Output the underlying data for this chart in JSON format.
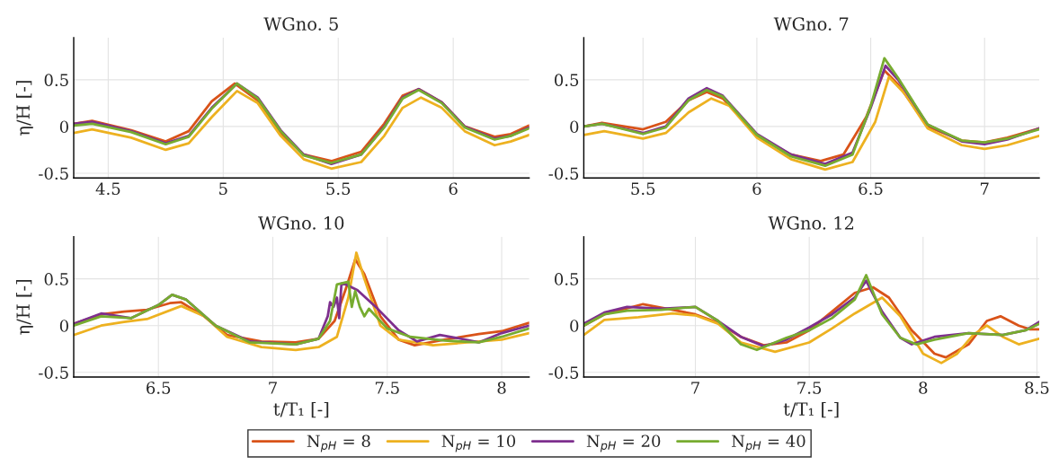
{
  "chart_data": [
    {
      "type": "line",
      "title": "WGno. 5",
      "ylabel": "η/H [-]",
      "xlim": [
        4.35,
        6.33
      ],
      "ylim": [
        -0.55,
        0.95
      ],
      "xticks": [
        4.5,
        5,
        5.5,
        6
      ],
      "yticks": [
        -0.5,
        0,
        0.5
      ],
      "grid": true,
      "legend": "bottom",
      "series": [
        {
          "name": "N$_{pH}$ = 8",
          "color": "#d95319",
          "x": [
            4.35,
            4.43,
            4.6,
            4.75,
            4.85,
            4.95,
            5.05,
            5.15,
            5.25,
            5.35,
            5.47,
            5.6,
            5.7,
            5.78,
            5.85,
            5.95,
            6.05,
            6.18,
            6.25,
            6.33
          ],
          "values": [
            0.03,
            0.06,
            -0.04,
            -0.16,
            -0.05,
            0.27,
            0.46,
            0.28,
            -0.07,
            -0.3,
            -0.37,
            -0.27,
            0.03,
            0.33,
            0.4,
            0.26,
            0.0,
            -0.11,
            -0.08,
            0.01
          ]
        },
        {
          "name": "N$_{pH}$ = 10",
          "color": "#edb120",
          "x": [
            4.35,
            4.43,
            4.6,
            4.75,
            4.85,
            4.95,
            5.06,
            5.15,
            5.25,
            5.35,
            5.47,
            5.6,
            5.7,
            5.78,
            5.86,
            5.95,
            6.05,
            6.18,
            6.25,
            6.33
          ],
          "values": [
            -0.07,
            -0.03,
            -0.12,
            -0.25,
            -0.18,
            0.1,
            0.38,
            0.25,
            -0.1,
            -0.35,
            -0.45,
            -0.38,
            -0.1,
            0.2,
            0.31,
            0.2,
            -0.05,
            -0.2,
            -0.16,
            -0.09
          ]
        },
        {
          "name": "N$_{pH}$ = 20",
          "color": "#7e2f8e",
          "x": [
            4.35,
            4.43,
            4.6,
            4.75,
            4.85,
            4.95,
            5.06,
            5.15,
            5.25,
            5.35,
            5.47,
            5.6,
            5.7,
            5.78,
            5.85,
            5.95,
            6.05,
            6.18,
            6.25,
            6.33
          ],
          "values": [
            0.03,
            0.05,
            -0.05,
            -0.18,
            -0.1,
            0.2,
            0.46,
            0.31,
            -0.04,
            -0.3,
            -0.4,
            -0.3,
            0.0,
            0.31,
            0.4,
            0.26,
            0.0,
            -0.13,
            -0.1,
            -0.01
          ]
        },
        {
          "name": "N$_{pH}$ = 40",
          "color": "#77ac30",
          "x": [
            4.35,
            4.43,
            4.6,
            4.75,
            4.85,
            4.95,
            5.06,
            5.15,
            5.25,
            5.35,
            5.47,
            5.6,
            5.7,
            5.78,
            5.85,
            5.95,
            6.05,
            6.18,
            6.25,
            6.33
          ],
          "values": [
            0.01,
            0.03,
            -0.06,
            -0.19,
            -0.11,
            0.19,
            0.46,
            0.3,
            -0.05,
            -0.31,
            -0.39,
            -0.3,
            -0.01,
            0.3,
            0.39,
            0.25,
            -0.01,
            -0.14,
            -0.1,
            -0.02
          ]
        }
      ]
    },
    {
      "type": "line",
      "title": "WGno. 7",
      "xlim": [
        5.24,
        7.24
      ],
      "ylim": [
        -0.55,
        0.95
      ],
      "xticks": [
        5.5,
        6,
        6.5,
        7
      ],
      "yticks": [
        -0.5,
        0,
        0.5
      ],
      "grid": true,
      "legend": "bottom",
      "series": [
        {
          "name": "N$_{pH}$ = 8",
          "color": "#d95319",
          "x": [
            5.24,
            5.32,
            5.5,
            5.6,
            5.7,
            5.78,
            5.85,
            6.0,
            6.15,
            6.28,
            6.38,
            6.48,
            6.56,
            6.62,
            6.75,
            6.9,
            7.0,
            7.1,
            7.24
          ],
          "values": [
            0.0,
            0.04,
            -0.03,
            0.05,
            0.28,
            0.37,
            0.3,
            -0.1,
            -0.3,
            -0.37,
            -0.3,
            0.1,
            0.6,
            0.45,
            0.0,
            -0.15,
            -0.17,
            -0.12,
            -0.02
          ]
        },
        {
          "name": "N$_{pH}$ = 10",
          "color": "#edb120",
          "x": [
            5.24,
            5.33,
            5.5,
            5.6,
            5.7,
            5.8,
            5.88,
            6.0,
            6.15,
            6.3,
            6.42,
            6.52,
            6.58,
            6.65,
            6.75,
            6.9,
            7.0,
            7.1,
            7.24
          ],
          "values": [
            -0.09,
            -0.05,
            -0.13,
            -0.07,
            0.15,
            0.3,
            0.22,
            -0.12,
            -0.35,
            -0.46,
            -0.38,
            0.05,
            0.53,
            0.35,
            -0.02,
            -0.2,
            -0.24,
            -0.2,
            -0.1
          ]
        },
        {
          "name": "N$_{pH}$ = 20",
          "color": "#7e2f8e",
          "x": [
            5.24,
            5.32,
            5.5,
            5.6,
            5.7,
            5.78,
            5.85,
            6.0,
            6.15,
            6.3,
            6.42,
            6.5,
            6.565,
            6.62,
            6.75,
            6.9,
            7.0,
            7.1,
            7.24
          ],
          "values": [
            0.0,
            0.03,
            -0.07,
            0.0,
            0.3,
            0.41,
            0.33,
            -0.08,
            -0.3,
            -0.4,
            -0.28,
            0.2,
            0.65,
            0.5,
            0.02,
            -0.16,
            -0.19,
            -0.14,
            -0.02
          ]
        },
        {
          "name": "N$_{pH}$ = 40",
          "color": "#77ac30",
          "x": [
            5.24,
            5.32,
            5.5,
            5.6,
            5.7,
            5.78,
            5.85,
            6.0,
            6.15,
            6.3,
            6.42,
            6.5,
            6.56,
            6.62,
            6.75,
            6.9,
            7.0,
            7.1,
            7.24
          ],
          "values": [
            0.0,
            0.03,
            -0.08,
            -0.01,
            0.28,
            0.39,
            0.32,
            -0.09,
            -0.32,
            -0.42,
            -0.3,
            0.22,
            0.73,
            0.52,
            0.02,
            -0.15,
            -0.17,
            -0.13,
            -0.03
          ]
        }
      ]
    },
    {
      "type": "line",
      "title": "WGno. 10",
      "xlabel": "t/T₁ [-]",
      "ylabel": "η/H [-]",
      "xlim": [
        6.13,
        8.12
      ],
      "ylim": [
        -0.55,
        0.95
      ],
      "xticks": [
        6.5,
        7,
        7.5,
        8
      ],
      "yticks": [
        -0.5,
        0,
        0.5
      ],
      "grid": true,
      "legend": "bottom",
      "series": [
        {
          "name": "N$_{pH}$ = 8",
          "color": "#d95319",
          "x": [
            6.13,
            6.25,
            6.35,
            6.45,
            6.55,
            6.6,
            6.7,
            6.8,
            6.95,
            7.1,
            7.2,
            7.27,
            7.32,
            7.36,
            7.4,
            7.47,
            7.55,
            7.62,
            7.75,
            7.9,
            8.0,
            8.12
          ],
          "values": [
            0.02,
            0.12,
            0.15,
            0.17,
            0.24,
            0.25,
            0.1,
            -0.1,
            -0.17,
            -0.18,
            -0.14,
            0.05,
            0.4,
            0.71,
            0.55,
            0.1,
            -0.15,
            -0.21,
            -0.15,
            -0.09,
            -0.06,
            0.03
          ]
        },
        {
          "name": "N$_{pH}$ = 10",
          "color": "#edb120",
          "x": [
            6.13,
            6.25,
            6.35,
            6.45,
            6.6,
            6.7,
            6.8,
            6.95,
            7.1,
            7.2,
            7.28,
            7.33,
            7.365,
            7.4,
            7.47,
            7.55,
            7.7,
            7.85,
            8.0,
            8.12
          ],
          "values": [
            -0.1,
            0.0,
            0.04,
            0.07,
            0.21,
            0.1,
            -0.12,
            -0.23,
            -0.26,
            -0.23,
            -0.12,
            0.3,
            0.78,
            0.5,
            0.0,
            -0.15,
            -0.21,
            -0.18,
            -0.15,
            -0.08
          ]
        },
        {
          "name": "N$_{pH}$ = 20",
          "color": "#7e2f8e",
          "x": [
            6.13,
            6.25,
            6.38,
            6.5,
            6.56,
            6.62,
            6.75,
            6.9,
            7.1,
            7.2,
            7.24,
            7.25,
            7.265,
            7.28,
            7.29,
            7.3,
            7.32,
            7.37,
            7.45,
            7.55,
            7.63,
            7.73,
            7.8,
            7.9,
            8.0,
            8.12
          ],
          "values": [
            0.02,
            0.13,
            0.08,
            0.22,
            0.33,
            0.28,
            0.0,
            -0.17,
            -0.2,
            -0.14,
            0.1,
            0.25,
            0.2,
            0.3,
            0.08,
            0.45,
            0.44,
            0.38,
            0.2,
            -0.05,
            -0.17,
            -0.1,
            -0.13,
            -0.18,
            -0.08,
            0.0
          ]
        },
        {
          "name": "N$_{pH}$ = 40",
          "color": "#77ac30",
          "x": [
            6.13,
            6.25,
            6.38,
            6.5,
            6.56,
            6.62,
            6.75,
            6.9,
            7.1,
            7.2,
            7.25,
            7.28,
            7.33,
            7.345,
            7.36,
            7.38,
            7.4,
            7.42,
            7.5,
            7.6,
            7.75,
            7.9,
            8.0,
            8.12
          ],
          "values": [
            0.0,
            0.1,
            0.08,
            0.22,
            0.33,
            0.28,
            0.0,
            -0.18,
            -0.2,
            -0.14,
            0.05,
            0.44,
            0.47,
            0.2,
            0.37,
            0.2,
            0.1,
            0.18,
            -0.03,
            -0.12,
            -0.16,
            -0.18,
            -0.12,
            -0.03
          ]
        }
      ]
    },
    {
      "type": "line",
      "title": "WGno. 12",
      "xlabel": "t/T₁ [-]",
      "xlim": [
        6.51,
        8.51
      ],
      "ylim": [
        -0.55,
        0.95
      ],
      "xticks": [
        7,
        7.5,
        8,
        8.5
      ],
      "yticks": [
        -0.5,
        0,
        0.5
      ],
      "grid": true,
      "legend": "bottom",
      "series": [
        {
          "name": "N$_{pH}$ = 8",
          "color": "#d95319",
          "x": [
            6.51,
            6.6,
            6.77,
            6.9,
            7.0,
            7.1,
            7.2,
            7.3,
            7.4,
            7.5,
            7.6,
            7.7,
            7.78,
            7.85,
            7.95,
            8.05,
            8.1,
            8.2,
            8.28,
            8.34,
            8.42,
            8.47,
            8.51
          ],
          "values": [
            0.0,
            0.12,
            0.23,
            0.17,
            0.12,
            0.03,
            -0.12,
            -0.21,
            -0.18,
            -0.05,
            0.15,
            0.35,
            0.41,
            0.3,
            -0.05,
            -0.3,
            -0.34,
            -0.2,
            0.05,
            0.1,
            0.0,
            -0.04,
            -0.04
          ]
        },
        {
          "name": "N$_{pH}$ = 10",
          "color": "#edb120",
          "x": [
            6.51,
            6.6,
            6.75,
            6.9,
            7.0,
            7.1,
            7.2,
            7.35,
            7.5,
            7.6,
            7.7,
            7.82,
            7.9,
            8.0,
            8.08,
            8.15,
            8.22,
            8.28,
            8.35,
            8.42,
            8.51
          ],
          "values": [
            -0.1,
            0.06,
            0.09,
            0.13,
            0.11,
            0.02,
            -0.18,
            -0.28,
            -0.18,
            -0.03,
            0.13,
            0.3,
            0.1,
            -0.3,
            -0.4,
            -0.3,
            -0.1,
            0.0,
            -0.12,
            -0.2,
            -0.14
          ]
        },
        {
          "name": "N$_{pH}$ = 20",
          "color": "#7e2f8e",
          "x": [
            6.51,
            6.6,
            6.7,
            6.85,
            7.0,
            7.1,
            7.2,
            7.3,
            7.4,
            7.5,
            7.6,
            7.7,
            7.75,
            7.82,
            7.9,
            7.95,
            8.05,
            8.2,
            8.35,
            8.45,
            8.51
          ],
          "values": [
            0.02,
            0.14,
            0.2,
            0.18,
            0.2,
            0.05,
            -0.12,
            -0.22,
            -0.15,
            -0.02,
            0.12,
            0.3,
            0.48,
            0.15,
            -0.13,
            -0.2,
            -0.12,
            -0.08,
            -0.1,
            -0.05,
            0.04
          ]
        },
        {
          "name": "N$_{pH}$ = 40",
          "color": "#77ac30",
          "x": [
            6.51,
            6.6,
            6.7,
            6.85,
            7.0,
            7.1,
            7.2,
            7.27,
            7.4,
            7.5,
            7.6,
            7.7,
            7.75,
            7.82,
            7.9,
            7.97,
            8.05,
            8.2,
            8.35,
            8.45,
            8.51
          ],
          "values": [
            0.0,
            0.12,
            0.16,
            0.17,
            0.2,
            0.05,
            -0.2,
            -0.26,
            -0.13,
            -0.05,
            0.08,
            0.28,
            0.54,
            0.12,
            -0.13,
            -0.2,
            -0.15,
            -0.08,
            -0.1,
            -0.05,
            0.02
          ]
        }
      ]
    }
  ]
}
